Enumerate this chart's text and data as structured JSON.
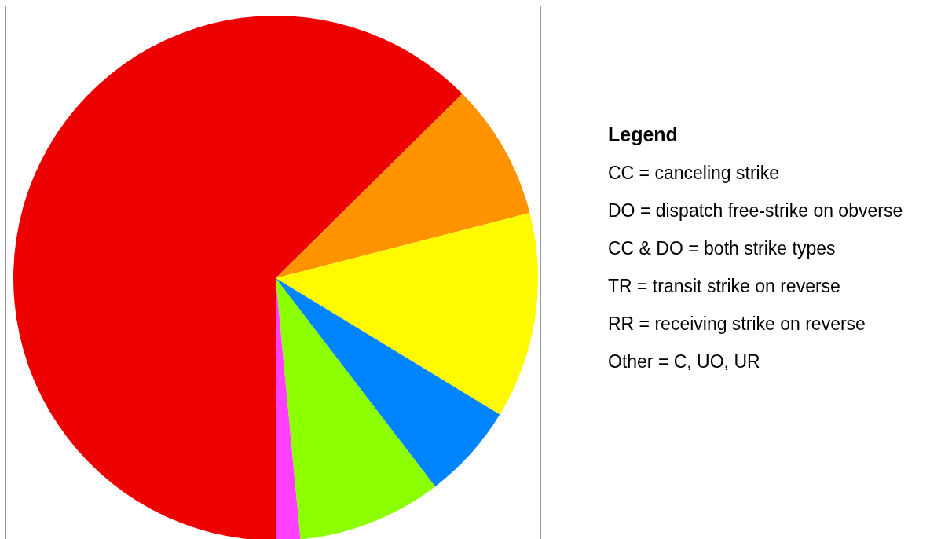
{
  "chart_data": {
    "type": "pie",
    "categories": [
      null,
      null,
      null,
      null,
      null,
      null
    ],
    "values": [
      62.6,
      8.4,
      12.7,
      5.9,
      8.9,
      1.5
    ],
    "colors": [
      "#ec0000",
      "#ff9400",
      "#fffa00",
      "#0084ff",
      "#8cff00",
      "#ff40ff"
    ],
    "annotations": [
      "Legend",
      "CC = canceling strike",
      "DO = dispatch free-strike on obverse",
      "CC & DO = both strike types",
      "TR = transit strike on reverse",
      "RR = receiving strike on reverse",
      "Other = C, UO, UR"
    ],
    "legend": false
  }
}
